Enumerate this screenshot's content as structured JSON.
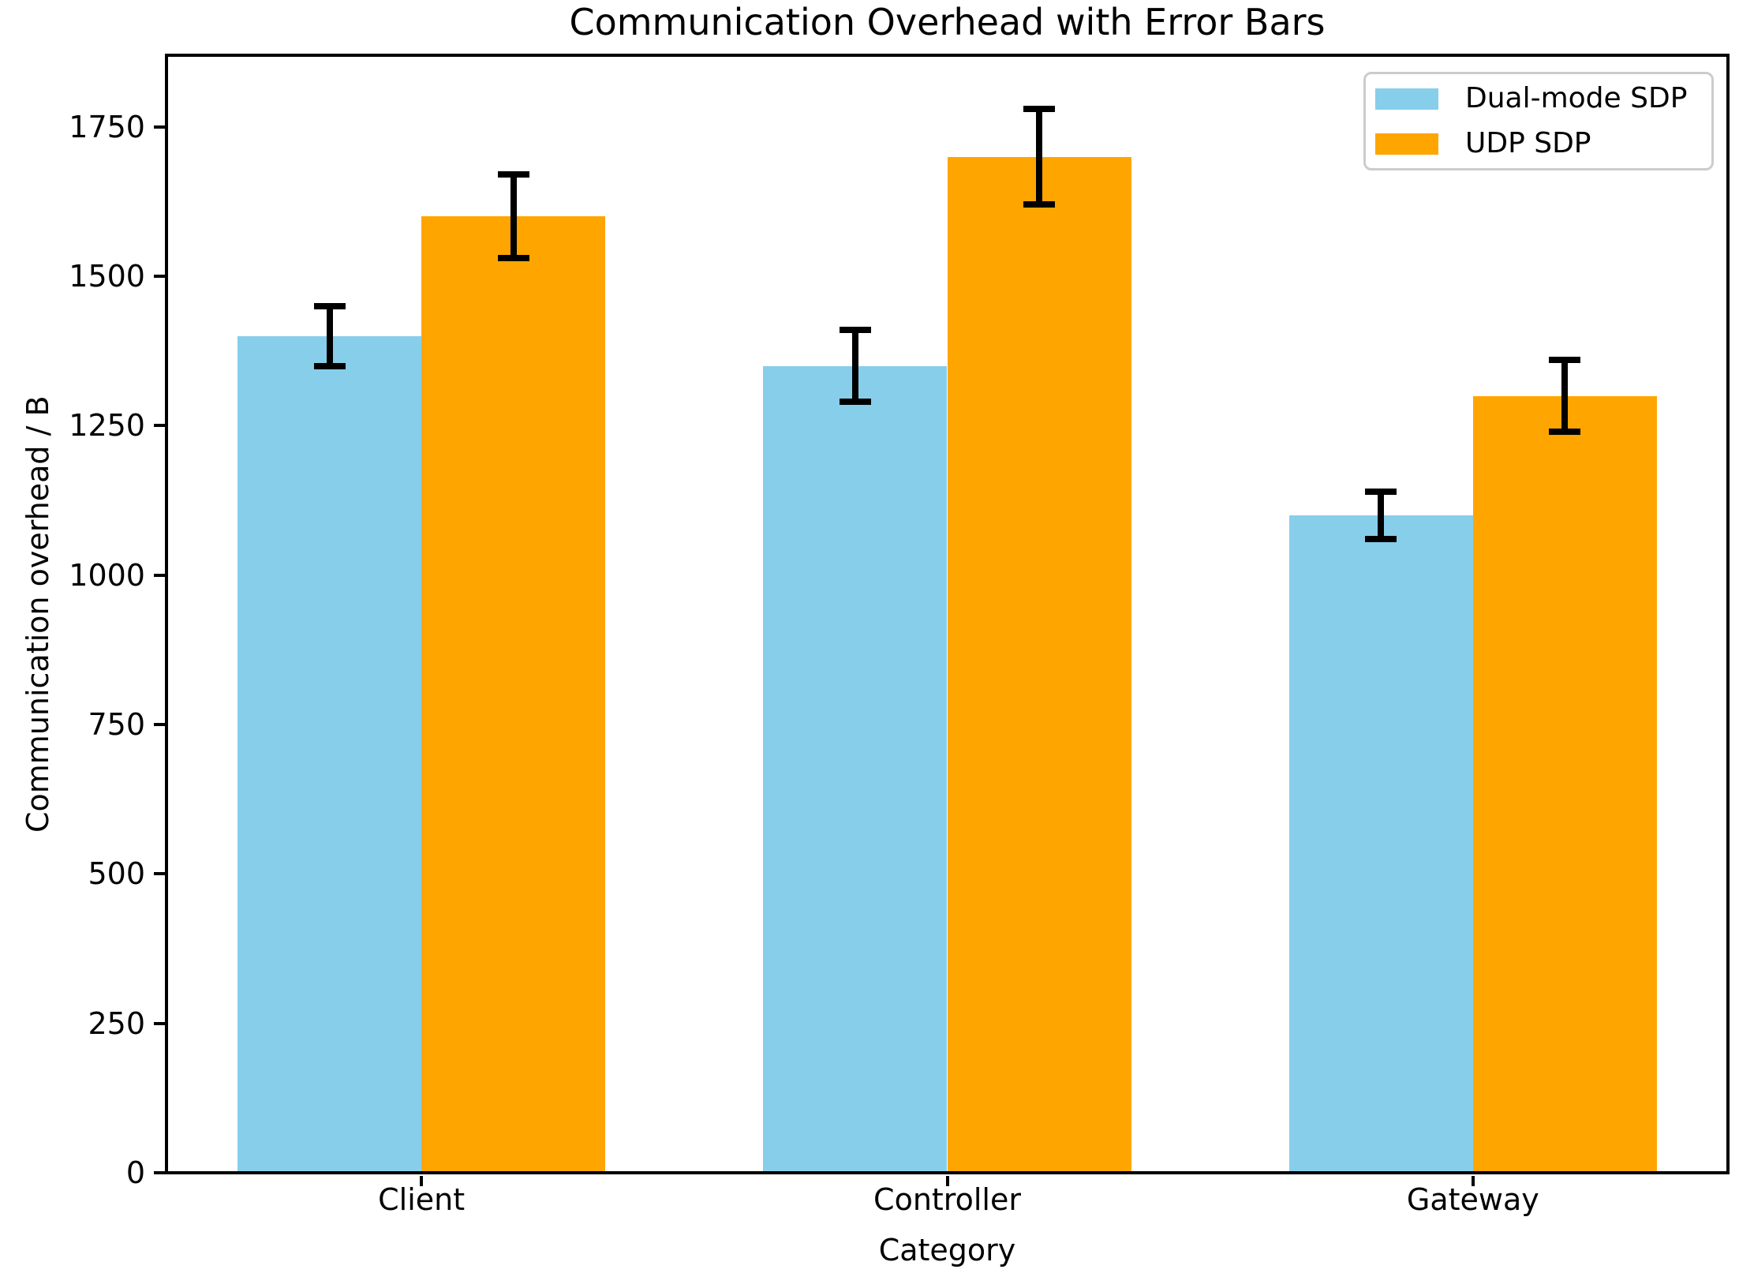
{
  "chart_data": {
    "type": "bar",
    "title": "Communication Overhead with Error Bars",
    "xlabel": "Category",
    "ylabel": "Communication overhead / B",
    "categories": [
      "Client",
      "Controller",
      "Gateway"
    ],
    "series": [
      {
        "name": "Dual-mode SDP",
        "color": "#87CEEB",
        "values": [
          1400,
          1350,
          1100
        ],
        "errors": [
          50,
          60,
          40
        ]
      },
      {
        "name": "UDP SDP",
        "color": "#FFA500",
        "values": [
          1600,
          1700,
          1300
        ],
        "errors": [
          70,
          80,
          60
        ]
      }
    ],
    "ylim": [
      0,
      1870
    ],
    "yticks": [
      0,
      250,
      500,
      750,
      1000,
      1250,
      1500,
      1750
    ],
    "grid": false,
    "legend_position": "upper right",
    "error_bar_color": "#000000",
    "background_color": "#ffffff",
    "bar_group_width": 0.7
  }
}
